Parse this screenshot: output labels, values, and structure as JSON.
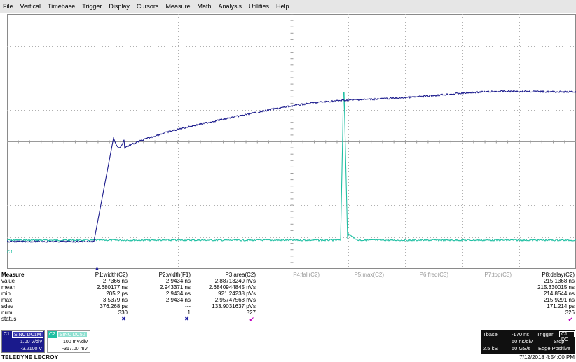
{
  "menu": [
    "File",
    "Vertical",
    "Timebase",
    "Trigger",
    "Display",
    "Cursors",
    "Measure",
    "Math",
    "Analysis",
    "Utilities",
    "Help"
  ],
  "channel_marker": "C1",
  "colors": {
    "c1_trace": "#1a1a8c",
    "c2_trace": "#1fbfa2",
    "grid": "#888888",
    "measure_check": "#c000c0"
  },
  "waveforms": {
    "c1": {
      "label": "C1",
      "description": "rising edge step: flat low level, sharp rise with overshoot near 15% of record, then slow settling toward high level"
    },
    "c2": {
      "label": "C2",
      "description": "flat baseline with a single narrow pulse near 59% of record"
    }
  },
  "measure": {
    "title": "Measure",
    "row_labels": [
      "value",
      "mean",
      "min",
      "max",
      "sdev",
      "num",
      "status"
    ],
    "columns": [
      {
        "header": "P1:width(C2)",
        "active": true,
        "values": [
          "2.7366 ns",
          "2.680177 ns",
          "205.2 ps",
          "3.5379 ns",
          "376.268 ps",
          "330"
        ],
        "status": "x"
      },
      {
        "header": "P2:width(F1)",
        "active": true,
        "values": [
          "2.9434 ns",
          "2.943371 ns",
          "2.9434 ns",
          "2.9434 ns",
          "---",
          "1"
        ],
        "status": "x"
      },
      {
        "header": "P3:area(C2)",
        "active": true,
        "values": [
          "2.88713240 nVs",
          "2.6840944845 nVs",
          "921.24238 pVs",
          "2.95747568 nVs",
          "133.9031637 pVs",
          "327"
        ],
        "status": "check"
      },
      {
        "header": "P4:fall(C2)",
        "active": false,
        "values": [
          "",
          "",
          "",
          "",
          "",
          ""
        ],
        "status": ""
      },
      {
        "header": "P5:max(C2)",
        "active": false,
        "values": [
          "",
          "",
          "",
          "",
          "",
          ""
        ],
        "status": ""
      },
      {
        "header": "P6:freq(C3)",
        "active": false,
        "values": [
          "",
          "",
          "",
          "",
          "",
          ""
        ],
        "status": ""
      },
      {
        "header": "P7:top(C3)",
        "active": false,
        "values": [
          "",
          "",
          "",
          "",
          "",
          ""
        ],
        "status": ""
      },
      {
        "header": "P8:delay(C2)",
        "active": true,
        "values": [
          "215.1368 ns",
          "215.330015 ns",
          "214.8544 ns",
          "215.9291 ns",
          "171.214 ps",
          "326"
        ],
        "status": "check"
      }
    ]
  },
  "channels": {
    "c1": {
      "tag": "C1",
      "coupling": "SINC DC1M",
      "vdiv": "1.00 V/div",
      "offset": "-3.2100 V"
    },
    "c2": {
      "tag": "C2",
      "coupling": "SINC DC50",
      "vdiv": "100 mV/div",
      "offset": "-317.00 mV"
    }
  },
  "brand": "TELEDYNE LECROY",
  "timebase": {
    "label": "Tbase",
    "value": "-170 ns",
    "trigger_label": "Trigger",
    "trigger_chip": "C1 DC",
    "row2_left": "",
    "row2_mid": "50 ns/div",
    "row2_right": "Stop",
    "row3_left": "2.5 kS",
    "row3_mid": "50 GS/s",
    "row3_right": "Edge Positive"
  },
  "timestamp": "7/12/2018 4:54:00 PM"
}
